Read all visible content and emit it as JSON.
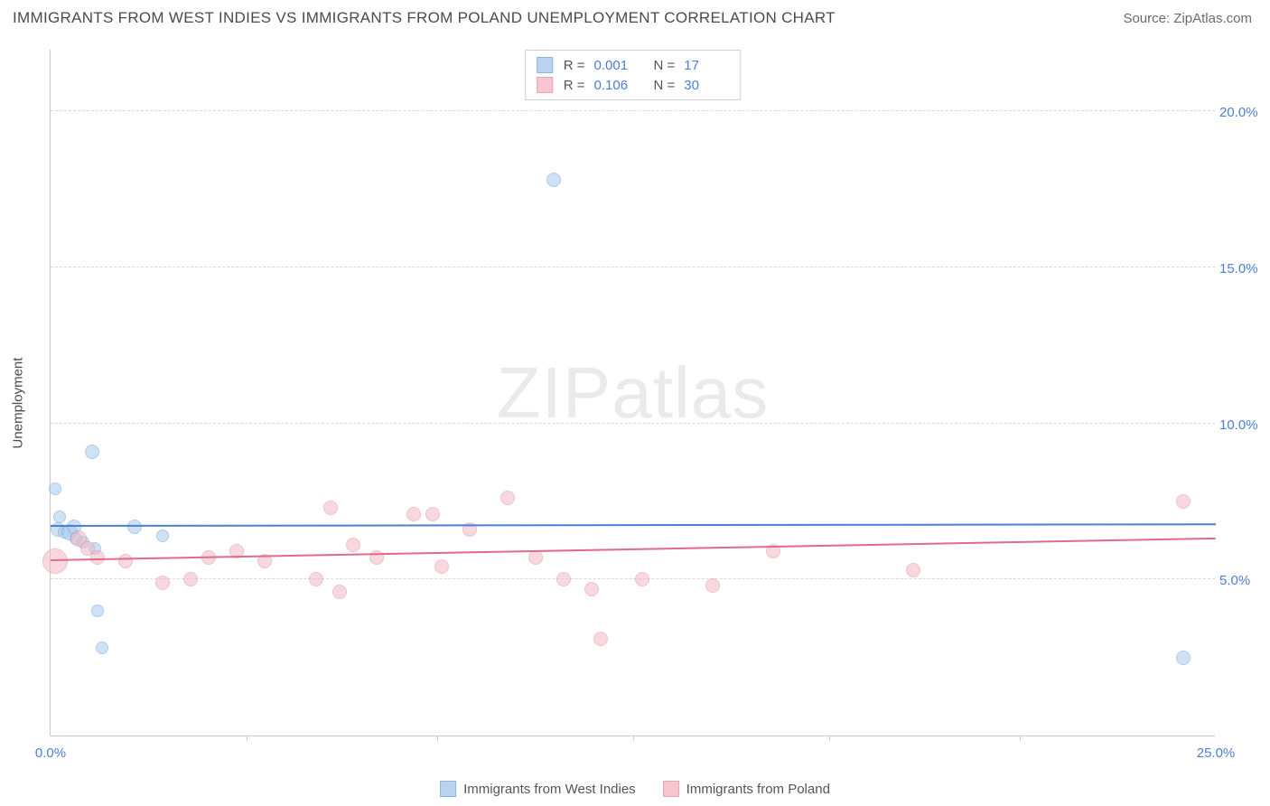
{
  "title": "IMMIGRANTS FROM WEST INDIES VS IMMIGRANTS FROM POLAND UNEMPLOYMENT CORRELATION CHART",
  "source": "Source: ZipAtlas.com",
  "watermark": "ZIPatlas",
  "ylabel": "Unemployment",
  "chart": {
    "type": "scatter",
    "xlim": [
      0,
      25
    ],
    "ylim": [
      0,
      22
    ],
    "x_ticks": [
      0,
      25
    ],
    "x_tick_labels": [
      "0.0%",
      "25.0%"
    ],
    "x_minor_ticks": [
      4.2,
      8.3,
      12.5,
      16.7,
      20.8
    ],
    "y_ticks": [
      5,
      10,
      15,
      20
    ],
    "y_tick_labels": [
      "5.0%",
      "10.0%",
      "15.0%",
      "20.0%"
    ],
    "grid_color": "#d8d8d8",
    "axis_color": "#c9c9c9",
    "tick_label_color": "#4a7fd4",
    "background_color": "#ffffff",
    "series": [
      {
        "name": "Immigrants from West Indies",
        "fill_color": "#a8c9ed",
        "stroke_color": "#6fa3d8",
        "fill_opacity": 0.55,
        "line_color": "#4a7fd4",
        "R": "0.001",
        "N": "17",
        "trend": {
          "y_start": 6.7,
          "y_end": 6.75
        },
        "points": [
          {
            "x": 0.1,
            "y": 7.9,
            "r": 7
          },
          {
            "x": 0.15,
            "y": 6.6,
            "r": 8
          },
          {
            "x": 0.2,
            "y": 7.0,
            "r": 7
          },
          {
            "x": 0.3,
            "y": 6.5,
            "r": 7
          },
          {
            "x": 0.4,
            "y": 6.5,
            "r": 9
          },
          {
            "x": 0.5,
            "y": 6.7,
            "r": 8
          },
          {
            "x": 0.55,
            "y": 6.3,
            "r": 7
          },
          {
            "x": 0.7,
            "y": 6.2,
            "r": 7
          },
          {
            "x": 0.9,
            "y": 9.1,
            "r": 8
          },
          {
            "x": 0.95,
            "y": 6.0,
            "r": 7
          },
          {
            "x": 1.0,
            "y": 4.0,
            "r": 7
          },
          {
            "x": 1.1,
            "y": 2.8,
            "r": 7
          },
          {
            "x": 1.8,
            "y": 6.7,
            "r": 8
          },
          {
            "x": 2.4,
            "y": 6.4,
            "r": 7
          },
          {
            "x": 10.8,
            "y": 17.8,
            "r": 8
          },
          {
            "x": 24.3,
            "y": 2.5,
            "r": 8
          }
        ]
      },
      {
        "name": "Immigrants from Poland",
        "fill_color": "#f4b9c6",
        "stroke_color": "#e58ca2",
        "fill_opacity": 0.55,
        "line_color": "#e06a8a",
        "R": "0.106",
        "N": "30",
        "trend": {
          "y_start": 5.6,
          "y_end": 6.3
        },
        "points": [
          {
            "x": 0.1,
            "y": 5.6,
            "r": 14
          },
          {
            "x": 0.6,
            "y": 6.3,
            "r": 9
          },
          {
            "x": 0.8,
            "y": 6.0,
            "r": 8
          },
          {
            "x": 1.0,
            "y": 5.7,
            "r": 8
          },
          {
            "x": 1.6,
            "y": 5.6,
            "r": 8
          },
          {
            "x": 2.4,
            "y": 4.9,
            "r": 8
          },
          {
            "x": 3.0,
            "y": 5.0,
            "r": 8
          },
          {
            "x": 3.4,
            "y": 5.7,
            "r": 8
          },
          {
            "x": 4.0,
            "y": 5.9,
            "r": 8
          },
          {
            "x": 4.6,
            "y": 5.6,
            "r": 8
          },
          {
            "x": 5.7,
            "y": 5.0,
            "r": 8
          },
          {
            "x": 6.0,
            "y": 7.3,
            "r": 8
          },
          {
            "x": 6.2,
            "y": 4.6,
            "r": 8
          },
          {
            "x": 6.5,
            "y": 6.1,
            "r": 8
          },
          {
            "x": 7.0,
            "y": 5.7,
            "r": 8
          },
          {
            "x": 7.8,
            "y": 7.1,
            "r": 8
          },
          {
            "x": 8.2,
            "y": 7.1,
            "r": 8
          },
          {
            "x": 8.4,
            "y": 5.4,
            "r": 8
          },
          {
            "x": 9.0,
            "y": 6.6,
            "r": 8
          },
          {
            "x": 9.8,
            "y": 7.6,
            "r": 8
          },
          {
            "x": 10.4,
            "y": 5.7,
            "r": 8
          },
          {
            "x": 11.0,
            "y": 5.0,
            "r": 8
          },
          {
            "x": 11.6,
            "y": 4.7,
            "r": 8
          },
          {
            "x": 11.8,
            "y": 3.1,
            "r": 8
          },
          {
            "x": 12.7,
            "y": 5.0,
            "r": 8
          },
          {
            "x": 14.2,
            "y": 4.8,
            "r": 8
          },
          {
            "x": 15.5,
            "y": 5.9,
            "r": 8
          },
          {
            "x": 18.5,
            "y": 5.3,
            "r": 8
          },
          {
            "x": 24.3,
            "y": 7.5,
            "r": 8
          }
        ]
      }
    ]
  },
  "legend_bottom": [
    {
      "label": "Immigrants from West Indies",
      "series": 0
    },
    {
      "label": "Immigrants from Poland",
      "series": 1
    }
  ]
}
